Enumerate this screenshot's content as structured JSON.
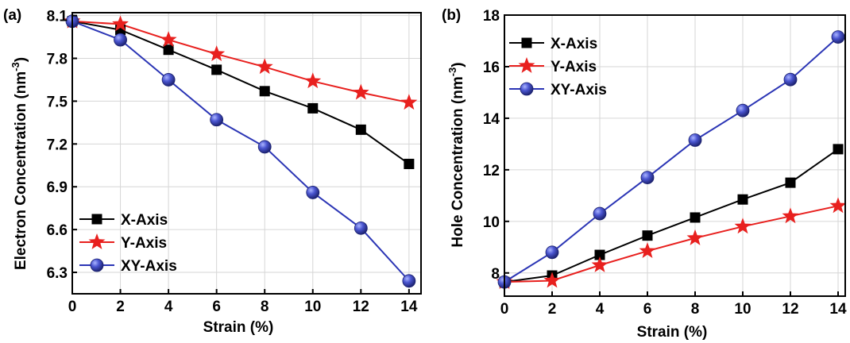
{
  "chart_data": [
    {
      "type": "line",
      "panel_label": "(a)",
      "xlabel": "Strain (%)",
      "ylabel": "Electron Concentration (nm",
      "ylabel_sup": "-3",
      "ylabel_close": ")",
      "x": [
        0,
        2,
        4,
        6,
        8,
        10,
        12,
        14
      ],
      "xlim": [
        0,
        14.5
      ],
      "ylim": [
        6.15,
        8.12
      ],
      "xticks": [
        0,
        2,
        4,
        6,
        8,
        10,
        12,
        14
      ],
      "yticks": [
        6.3,
        6.6,
        6.9,
        7.2,
        7.5,
        7.8,
        8.1
      ],
      "ytick_decimals": 1,
      "grid": true,
      "legend_position": "bottom-left",
      "series": [
        {
          "name": "X-Axis",
          "color": "#000000",
          "marker": "square",
          "values": [
            8.06,
            8.0,
            7.86,
            7.72,
            7.57,
            7.45,
            7.3,
            7.06
          ]
        },
        {
          "name": "Y-Axis",
          "color": "#e8201e",
          "marker": "star",
          "values": [
            8.06,
            8.04,
            7.93,
            7.83,
            7.74,
            7.64,
            7.56,
            7.49
          ]
        },
        {
          "name": "XY-Axis",
          "color": "#2b35b5",
          "marker": "circle",
          "values": [
            8.06,
            7.93,
            7.65,
            7.37,
            7.18,
            6.86,
            6.61,
            6.24
          ]
        }
      ]
    },
    {
      "type": "line",
      "panel_label": "(b)",
      "xlabel": "Strain (%)",
      "ylabel": "Hole Concentration (nm",
      "ylabel_sup": "-3",
      "ylabel_close": ")",
      "x": [
        0,
        2,
        4,
        6,
        8,
        10,
        12,
        14
      ],
      "xlim": [
        0,
        14.3
      ],
      "ylim": [
        7.1,
        18.0
      ],
      "xticks": [
        0,
        2,
        4,
        6,
        8,
        10,
        12,
        14
      ],
      "yticks": [
        8,
        10,
        12,
        14,
        16,
        18
      ],
      "ytick_decimals": 0,
      "grid": true,
      "legend_position": "top-left",
      "series": [
        {
          "name": "X-Axis",
          "color": "#000000",
          "marker": "square",
          "values": [
            7.65,
            7.9,
            8.7,
            9.45,
            10.15,
            10.85,
            11.5,
            12.8
          ]
        },
        {
          "name": "Y-Axis",
          "color": "#e8201e",
          "marker": "star",
          "values": [
            7.65,
            7.7,
            8.3,
            8.85,
            9.35,
            9.8,
            10.2,
            10.6
          ]
        },
        {
          "name": "XY-Axis",
          "color": "#2b35b5",
          "marker": "circle",
          "values": [
            7.65,
            8.8,
            10.3,
            11.7,
            13.15,
            14.3,
            15.5,
            17.15
          ]
        }
      ]
    }
  ]
}
